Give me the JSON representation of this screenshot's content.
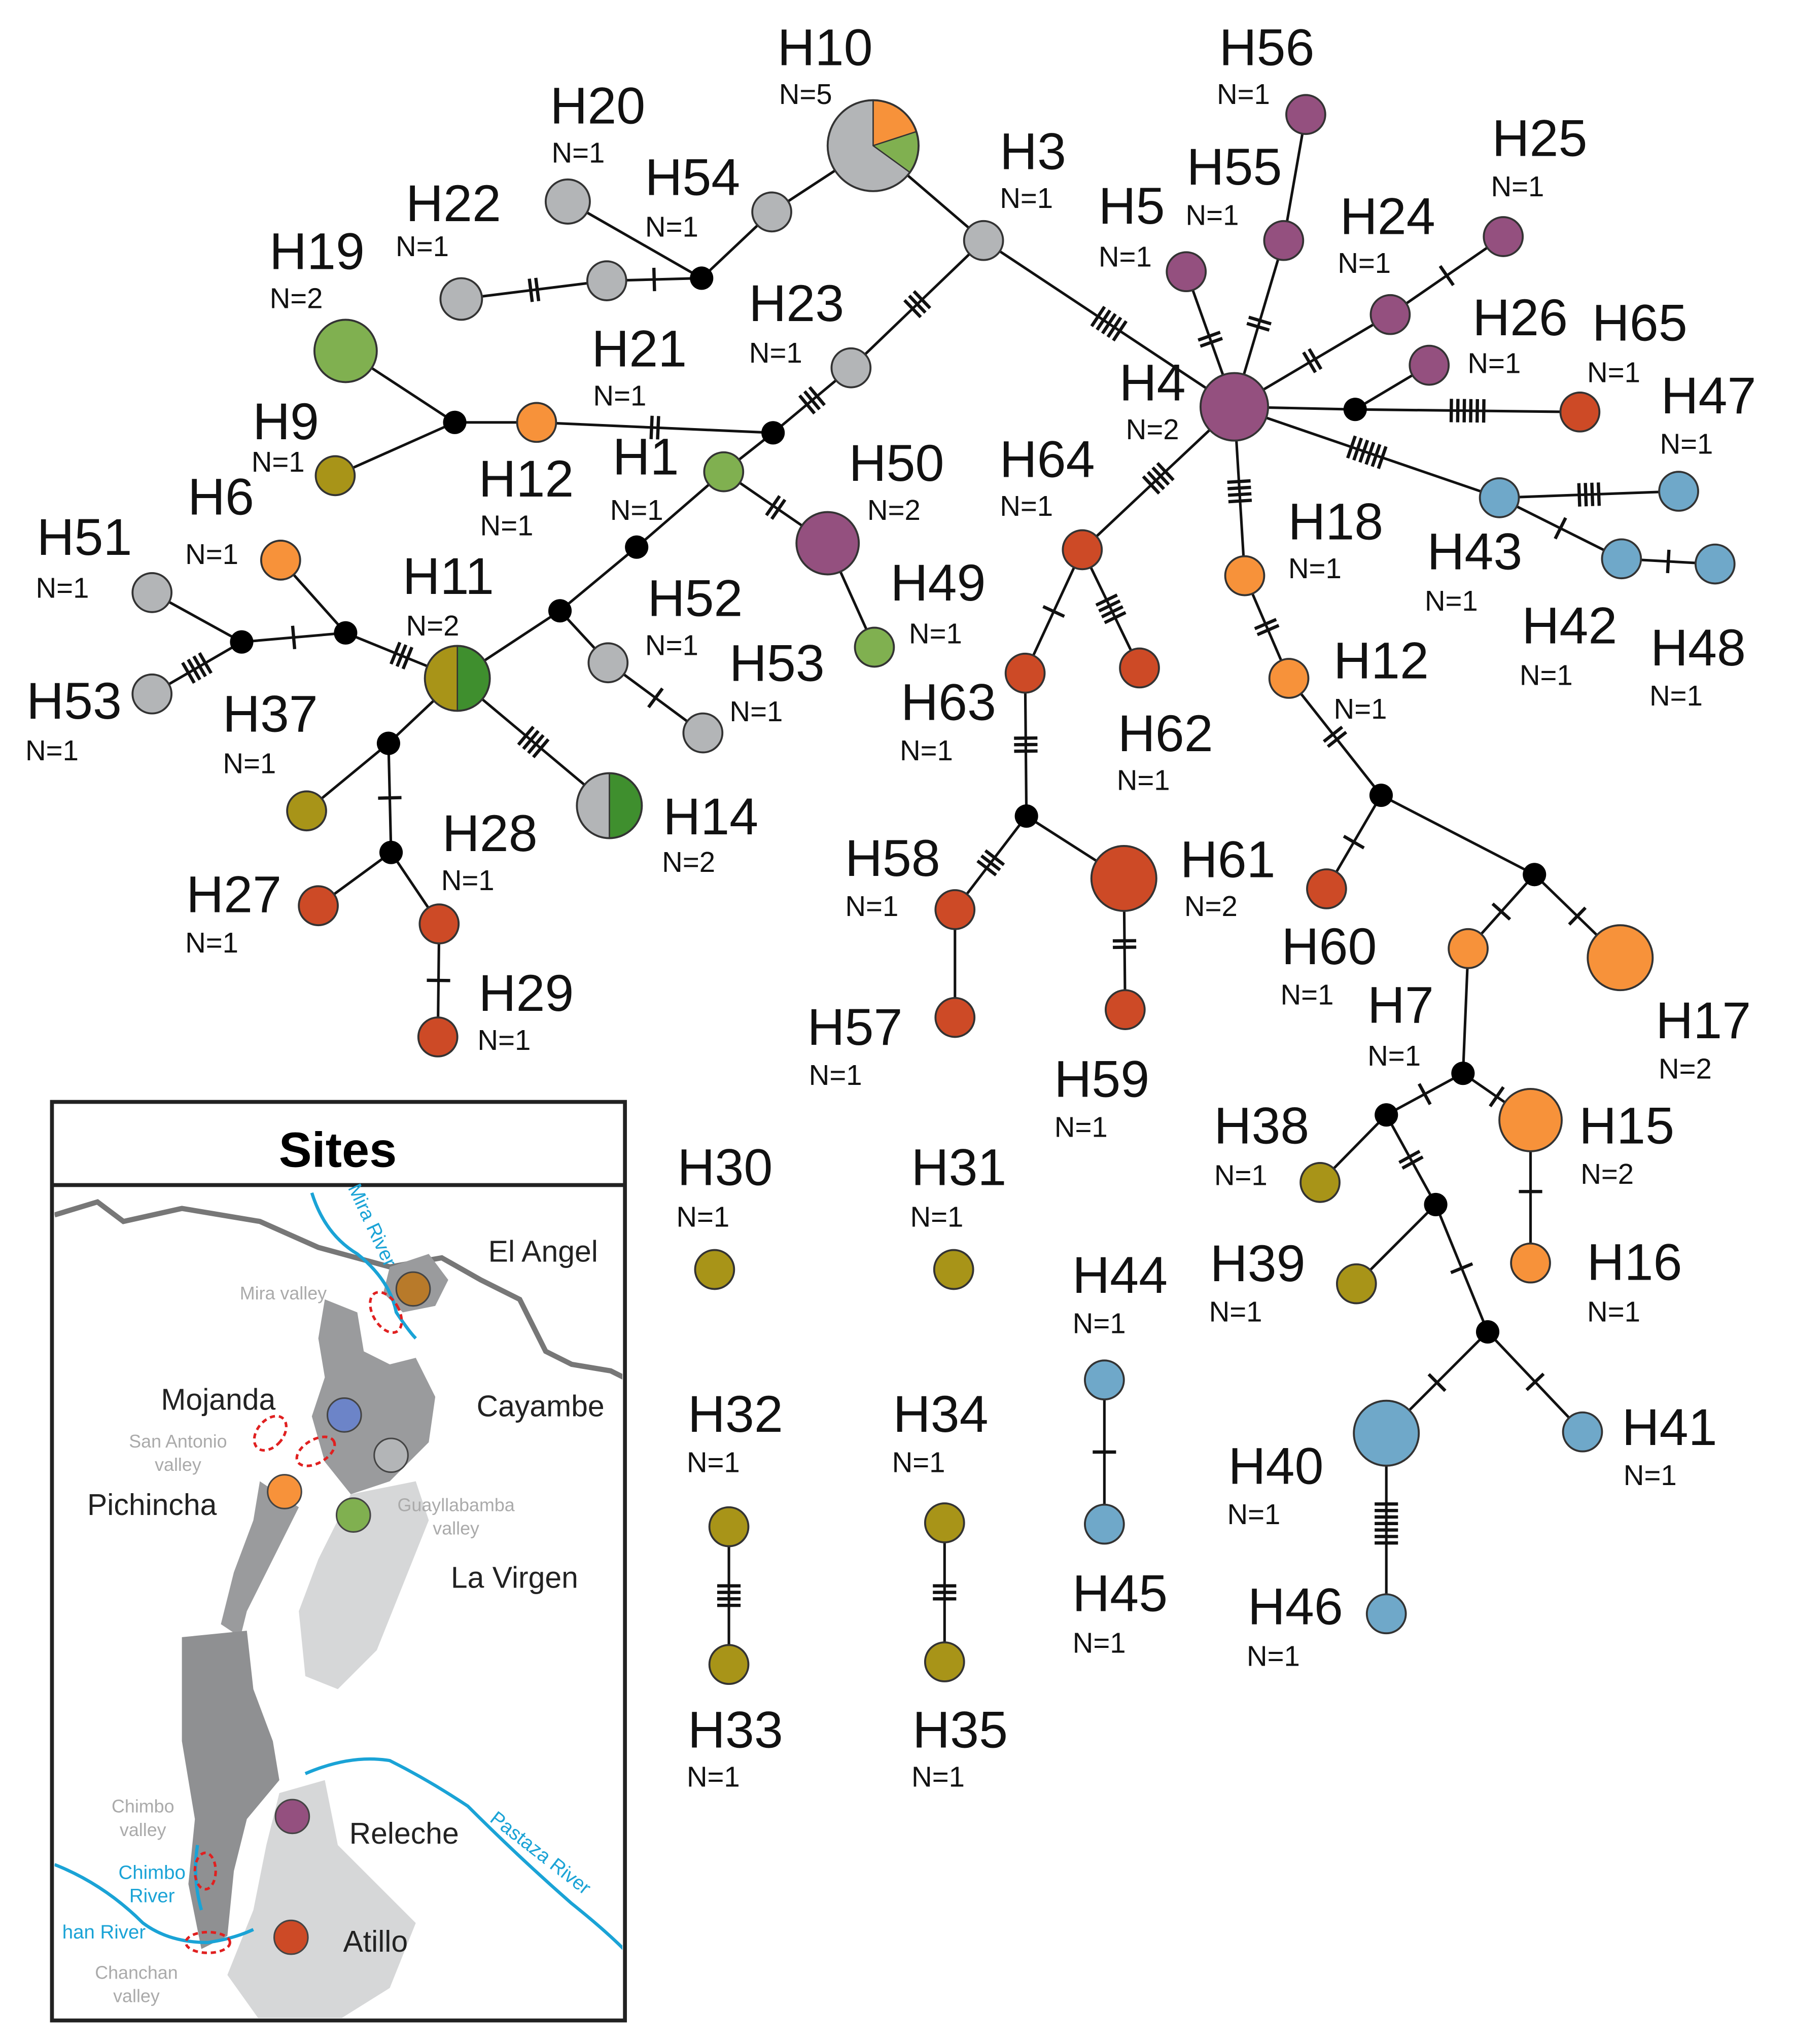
{
  "nodes": [
    {
      "label": "H10",
      "n": "N=5"
    },
    {
      "label": "H20",
      "n": "N=1"
    },
    {
      "label": "H54",
      "n": "N=1"
    },
    {
      "label": "H22",
      "n": "N=1"
    },
    {
      "label": "H19",
      "n": "N=2"
    },
    {
      "label": "H9",
      "n": "N=1"
    },
    {
      "label": "H12",
      "n": "N=1"
    },
    {
      "label": "H21",
      "n": "N=1"
    },
    {
      "label": "H23",
      "n": "N=1"
    },
    {
      "label": "H3",
      "n": "N=1"
    },
    {
      "label": "H1",
      "n": "N=1"
    },
    {
      "label": "H50",
      "n": "N=2"
    },
    {
      "label": "H49",
      "n": "N=1"
    },
    {
      "label": "H6",
      "n": "N=1"
    },
    {
      "label": "H51",
      "n": "N=1"
    },
    {
      "label": "H53",
      "n": "N=1"
    },
    {
      "label": "H11",
      "n": "N=2"
    },
    {
      "label": "H52",
      "n": "N=1"
    },
    {
      "label": "H53",
      "n": "N=1"
    },
    {
      "label": "H14",
      "n": "N=2"
    },
    {
      "label": "H37",
      "n": "N=1"
    },
    {
      "label": "H27",
      "n": "N=1"
    },
    {
      "label": "H28",
      "n": "N=1"
    },
    {
      "label": "H29",
      "n": "N=1"
    },
    {
      "label": "H4",
      "n": "N=2"
    },
    {
      "label": "H56",
      "n": "N=1"
    },
    {
      "label": "H55",
      "n": "N=1"
    },
    {
      "label": "H5",
      "n": "N=1"
    },
    {
      "label": "H24",
      "n": "N=1"
    },
    {
      "label": "H25",
      "n": "N=1"
    },
    {
      "label": "H26",
      "n": "N=1"
    },
    {
      "label": "H65",
      "n": "N=1"
    },
    {
      "label": "H47",
      "n": "N=1"
    },
    {
      "label": "H43",
      "n": "N=1"
    },
    {
      "label": "H42",
      "n": "N=1"
    },
    {
      "label": "H48",
      "n": "N=1"
    },
    {
      "label": "H64",
      "n": "N=1"
    },
    {
      "label": "H18",
      "n": "N=1"
    },
    {
      "label": "H12",
      "n": "N=1"
    },
    {
      "label": "H63",
      "n": "N=1"
    },
    {
      "label": "H62",
      "n": "N=1"
    },
    {
      "label": "H58",
      "n": "N=1"
    },
    {
      "label": "H61",
      "n": "N=2"
    },
    {
      "label": "H57",
      "n": "N=1"
    },
    {
      "label": "H59",
      "n": "N=1"
    },
    {
      "label": "H60",
      "n": "N=1"
    },
    {
      "label": "H17",
      "n": "N=2"
    },
    {
      "label": "H7",
      "n": "N=1"
    },
    {
      "label": "H15",
      "n": "N=2"
    },
    {
      "label": "H16",
      "n": "N=1"
    },
    {
      "label": "H38",
      "n": "N=1"
    },
    {
      "label": "H39",
      "n": "N=1"
    },
    {
      "label": "H41",
      "n": "N=1"
    },
    {
      "label": "H40",
      "n": "N=1"
    },
    {
      "label": "H46",
      "n": "N=1"
    },
    {
      "label": "H30",
      "n": "N=1"
    },
    {
      "label": "H31",
      "n": "N=1"
    },
    {
      "label": "H44",
      "n": "N=1"
    },
    {
      "label": "H45",
      "n": "N=1"
    },
    {
      "label": "H32",
      "n": "N=1"
    },
    {
      "label": "H34",
      "n": "N=1"
    },
    {
      "label": "H33",
      "n": "N=1"
    },
    {
      "label": "H35",
      "n": "N=1"
    }
  ],
  "map": {
    "title": "Sites",
    "sites": [
      "El Angel",
      "Mojanda",
      "Cayambe",
      "Pichincha",
      "La Virgen",
      "Releche",
      "Atillo"
    ],
    "valleys": [
      [
        "Mira valley"
      ],
      [
        "San Antonio",
        "valley"
      ],
      [
        "Guayllabamba",
        "valley"
      ],
      [
        "Chimbo",
        "valley"
      ],
      [
        "Chanchan",
        "valley"
      ]
    ],
    "rivers": [
      [
        "Mira River"
      ],
      [
        "Pastaza River"
      ],
      [
        "Chimbo",
        "River"
      ],
      [
        "han River"
      ]
    ]
  }
}
